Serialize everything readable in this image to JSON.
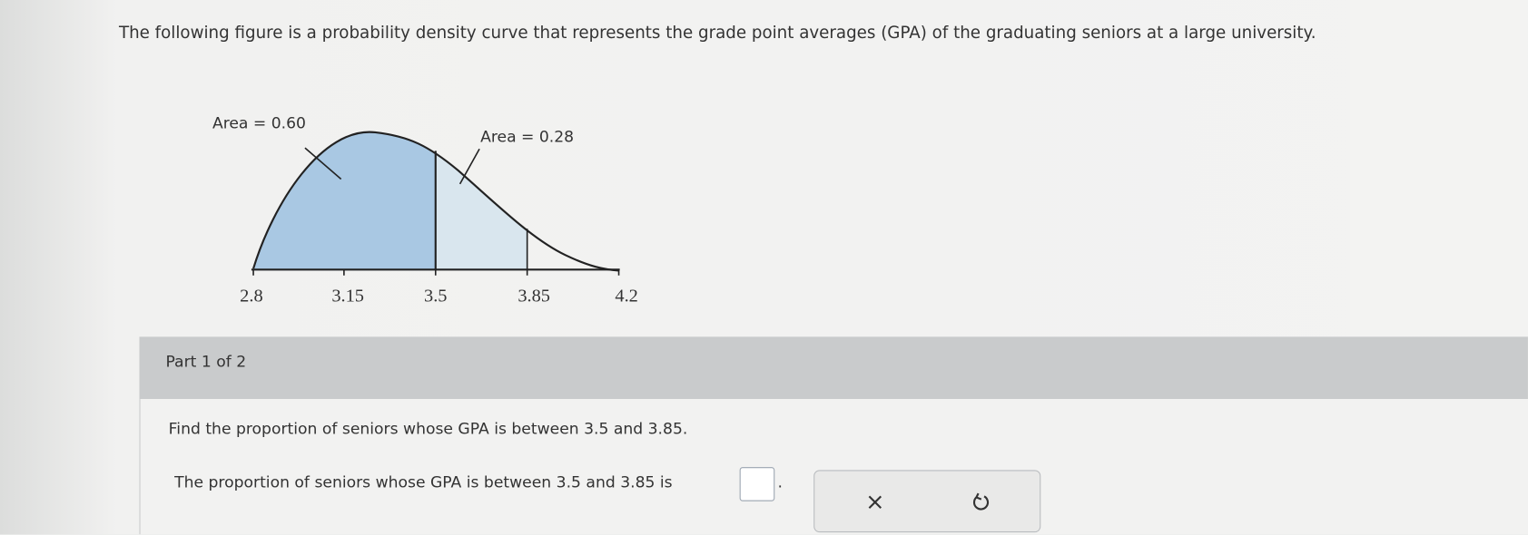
{
  "question": "The following figure is a probability density curve that represents the grade point averages (GPA) of the graduating seniors at a large university.",
  "figure": {
    "area_labels": [
      "Area = 0.60",
      "Area = 0.28"
    ],
    "x_labels": [
      "2.8",
      "3.15",
      "3.5",
      "3.85",
      "4.2"
    ]
  },
  "part": {
    "label": "Part 1 of 2",
    "prompt": "Find the proportion of seniors whose GPA is between 3.5 and 3.85.",
    "answer_before": "The proportion of seniors whose GPA is between 3.5 and 3.85 is",
    "answer_after": "."
  }
}
